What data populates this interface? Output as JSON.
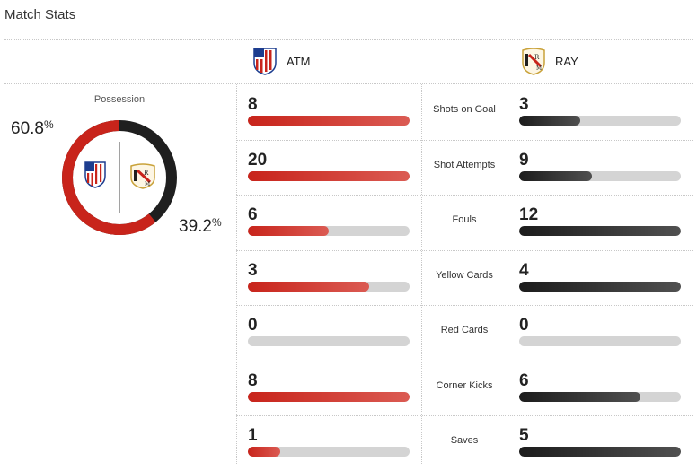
{
  "header": {
    "title": "Match Stats"
  },
  "teams": {
    "home": {
      "abbr": "ATM",
      "color": "#c8241b",
      "crest_icon": "atletico-crest-icon"
    },
    "away": {
      "abbr": "RAY",
      "color": "#1f1f1f",
      "crest_icon": "rayo-crest-icon"
    }
  },
  "possession": {
    "label": "Possession",
    "home_value": "60.8",
    "away_value": "39.2",
    "unit": "%"
  },
  "stats": [
    {
      "label": "Shots on Goal",
      "home": 8,
      "away": 3
    },
    {
      "label": "Shot Attempts",
      "home": 20,
      "away": 9
    },
    {
      "label": "Fouls",
      "home": 6,
      "away": 12
    },
    {
      "label": "Yellow Cards",
      "home": 3,
      "away": 4
    },
    {
      "label": "Red Cards",
      "home": 0,
      "away": 0
    },
    {
      "label": "Corner Kicks",
      "home": 8,
      "away": 6
    },
    {
      "label": "Saves",
      "home": 1,
      "away": 5
    }
  ]
}
